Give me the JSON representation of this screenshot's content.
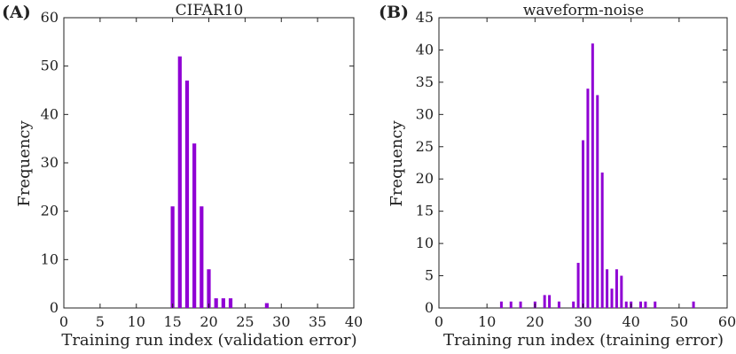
{
  "chart_data": [
    {
      "type": "bar",
      "panel_label": "(A)",
      "title": "CIFAR10",
      "xlabel": "Training run index (validation error)",
      "ylabel": "Frequency",
      "xlim": [
        0,
        40
      ],
      "ylim": [
        0,
        60
      ],
      "xticks": [
        0,
        5,
        10,
        15,
        20,
        25,
        30,
        35,
        40
      ],
      "yticks": [
        0,
        10,
        20,
        30,
        40,
        50,
        60
      ],
      "color": "#8f00d4",
      "grid": false,
      "legend": "none",
      "x": [
        15,
        16,
        17,
        18,
        19,
        20,
        21,
        22,
        23,
        28
      ],
      "values": [
        21,
        52,
        47,
        34,
        21,
        8,
        2,
        2,
        2,
        1
      ]
    },
    {
      "type": "bar",
      "panel_label": "(B)",
      "title": "waveform-noise",
      "xlabel": "Training run index (training error)",
      "ylabel": "Frequency",
      "xlim": [
        0,
        60
      ],
      "ylim": [
        0,
        45
      ],
      "xticks": [
        0,
        10,
        20,
        30,
        40,
        50,
        60
      ],
      "yticks": [
        0,
        5,
        10,
        15,
        20,
        25,
        30,
        35,
        40,
        45
      ],
      "color": "#8f00d4",
      "grid": false,
      "legend": "none",
      "x": [
        13,
        15,
        17,
        20,
        22,
        23,
        25,
        28,
        29,
        30,
        31,
        32,
        33,
        34,
        35,
        36,
        37,
        38,
        39,
        40,
        42,
        43,
        45,
        53
      ],
      "values": [
        1,
        1,
        1,
        1,
        2,
        2,
        1,
        1,
        7,
        26,
        34,
        41,
        33,
        21,
        6,
        3,
        6,
        5,
        1,
        1,
        1,
        1,
        1,
        1
      ]
    }
  ]
}
